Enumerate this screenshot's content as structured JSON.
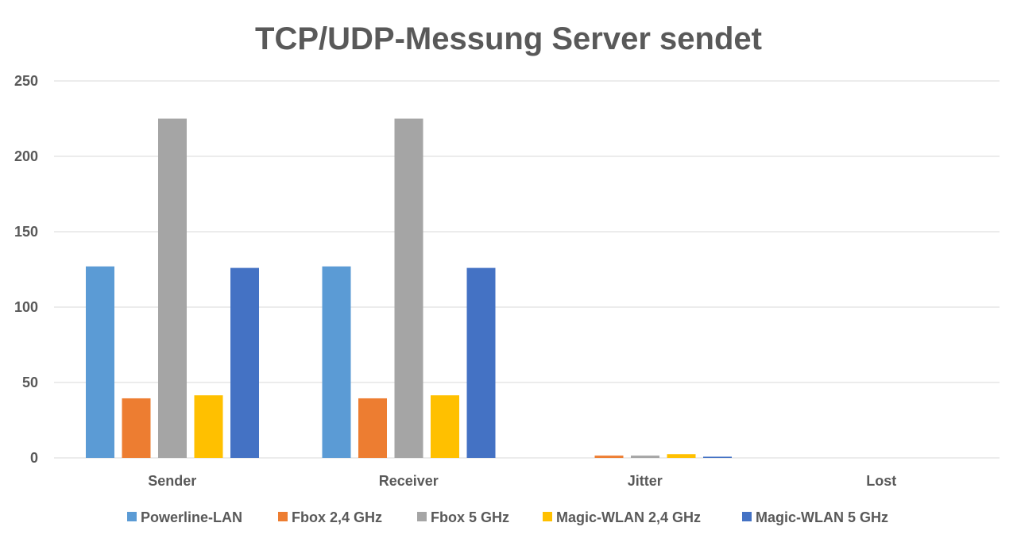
{
  "chart_data": {
    "type": "bar",
    "title": "TCP/UDP-Messung Server sendet",
    "xlabel": "",
    "ylabel": "",
    "categories": [
      "Sender",
      "Receiver",
      "Jitter",
      "Lost"
    ],
    "ylim": [
      0,
      250
    ],
    "yticks": [
      0,
      50,
      100,
      150,
      200,
      250
    ],
    "grid": true,
    "legend_position": "bottom",
    "series": [
      {
        "name": "Powerline-LAN",
        "color": "#5b9bd5",
        "values": [
          127,
          127,
          0,
          0
        ]
      },
      {
        "name": "Fbox 2,4 GHz",
        "color": "#ed7d31",
        "values": [
          39.5,
          39.5,
          1.5,
          0
        ]
      },
      {
        "name": "Fbox 5 GHz",
        "color": "#a5a5a5",
        "values": [
          225,
          225,
          1.5,
          0
        ]
      },
      {
        "name": "Magic-WLAN 2,4 GHz",
        "color": "#ffc000",
        "values": [
          41.5,
          41.5,
          2.5,
          0
        ]
      },
      {
        "name": "Magic-WLAN 5 GHz",
        "color": "#4472c4",
        "values": [
          126,
          126,
          0.8,
          0
        ]
      }
    ]
  }
}
